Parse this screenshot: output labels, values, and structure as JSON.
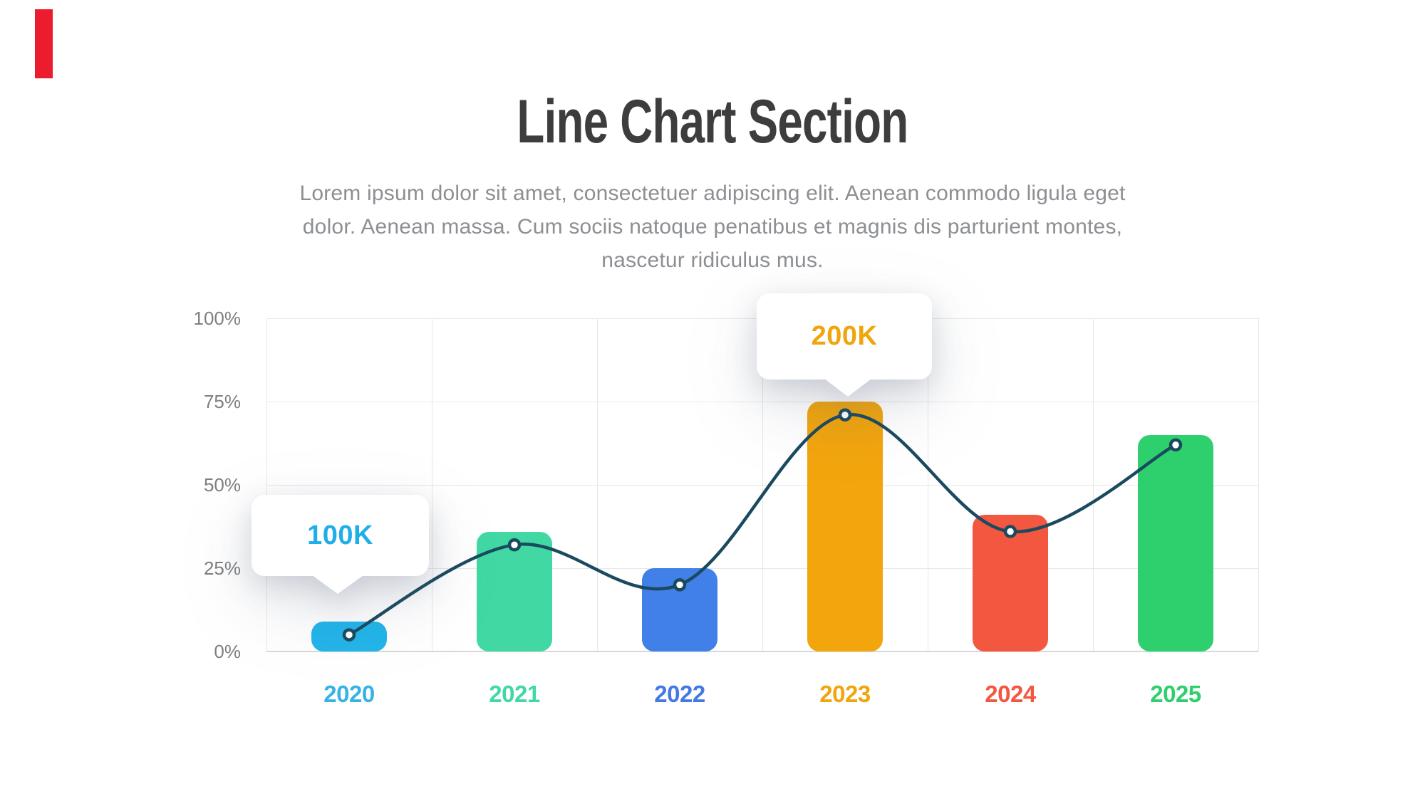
{
  "accent": {
    "color": "#EB1C2E"
  },
  "header": {
    "title": "Line Chart Section",
    "subtitle_lines": [
      "Lorem ipsum dolor sit amet, consectetuer adipiscing elit. Aenean commodo ligula eget",
      "dolor. Aenean massa. Cum sociis natoque penatibus et magnis dis parturient montes,",
      "nascetur ridiculus mus."
    ]
  },
  "chart_data": {
    "type": "bar",
    "subtype": "bar-with-line-overlay",
    "title": "",
    "xlabel": "",
    "ylabel": "",
    "categories": [
      "2020",
      "2021",
      "2022",
      "2023",
      "2024",
      "2025"
    ],
    "series": [
      {
        "name": "bars",
        "type": "bar",
        "unit": "%",
        "values": [
          9,
          36,
          25,
          75,
          41,
          65
        ]
      },
      {
        "name": "trend-line",
        "type": "line",
        "unit": "%",
        "values": [
          5,
          32,
          20,
          71,
          36,
          62
        ]
      }
    ],
    "bar_colors": [
      "#22B5EA",
      "#41D8A4",
      "#4080E8",
      "#F2A50D",
      "#F4573F",
      "#2ED06E"
    ],
    "label_colors": [
      "#36B3E5",
      "#41D8A4",
      "#4479E3",
      "#F0A50C",
      "#F4573F",
      "#2ED06E"
    ],
    "line_color": "#1B4A5F",
    "point_fill": "#FFFFFF",
    "grid": true,
    "grid_color": "#E8E8E8",
    "axis_text_color": "#7F7F7F",
    "ylim": [
      0,
      100
    ],
    "y_ticks": [
      "100%",
      "75%",
      "50%",
      "25%",
      "0%"
    ],
    "legend": "none",
    "annotations": [
      {
        "text": "100K",
        "color": "#1FAEE9",
        "target_category": "2020"
      },
      {
        "text": "200K",
        "color": "#F0A50C",
        "target_category": "2023"
      }
    ]
  }
}
